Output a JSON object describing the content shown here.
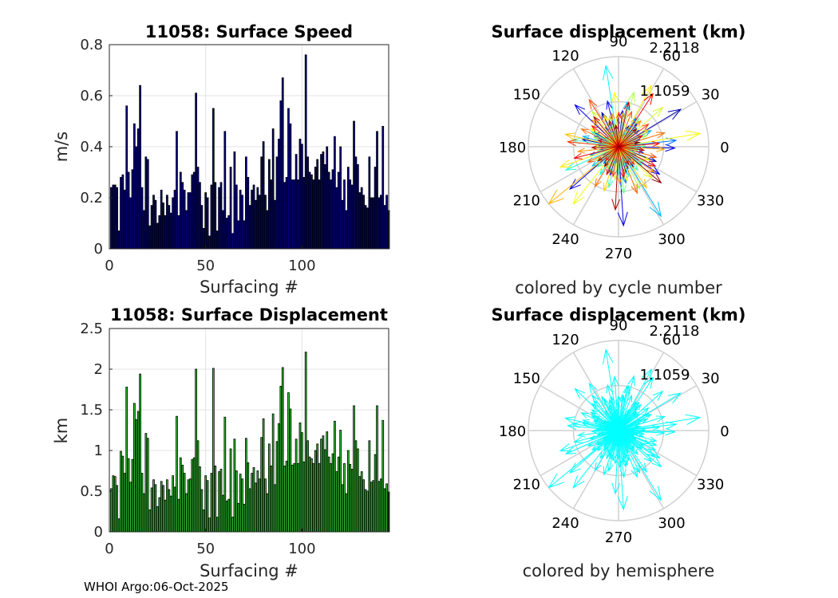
{
  "footer": "WHOI Argo:06-Oct-2025",
  "speed_chart": {
    "type": "bar",
    "title": "11058: Surface Speed",
    "xlabel": "Surfacing #",
    "ylabel": "m/s",
    "xlim": [
      0,
      145
    ],
    "ylim": [
      0,
      0.8
    ],
    "xticks": [
      0,
      50,
      100
    ],
    "yticks": [
      0,
      0.2,
      0.4,
      0.6,
      0.8
    ],
    "ytick_labels": [
      "0",
      "0.2",
      "0.4",
      "0.6",
      "0.8"
    ],
    "bar_color": "#00008b",
    "values": [
      0.24,
      0.25,
      0.25,
      0.24,
      0.07,
      0.28,
      0.29,
      0.23,
      0.56,
      0.3,
      0.2,
      0.31,
      0.49,
      0.4,
      0.47,
      0.64,
      0.24,
      0.15,
      0.36,
      0.35,
      0.09,
      0.17,
      0.21,
      0.19,
      0.1,
      0.13,
      0.23,
      0.18,
      0.13,
      0.21,
      0.17,
      0.14,
      0.2,
      0.23,
      0.46,
      0.13,
      0.3,
      0.26,
      0.23,
      0.15,
      0.22,
      0.22,
      0.29,
      0.3,
      0.61,
      0.32,
      0.26,
      0.17,
      0.08,
      0.22,
      0.2,
      0.05,
      0.25,
      0.55,
      0.26,
      0.07,
      0.24,
      0.26,
      0.15,
      0.46,
      0.12,
      0.13,
      0.32,
      0.06,
      0.38,
      0.25,
      0.11,
      0.23,
      0.21,
      0.11,
      0.36,
      0.28,
      0.17,
      0.23,
      0.25,
      0.19,
      0.24,
      0.21,
      0.36,
      0.42,
      0.21,
      0.15,
      0.35,
      0.27,
      0.47,
      0.19,
      0.36,
      0.43,
      0.58,
      0.67,
      0.26,
      0.28,
      0.55,
      0.49,
      0.27,
      0.27,
      0.37,
      0.27,
      0.43,
      0.41,
      0.28,
      0.76,
      0.36,
      0.3,
      0.29,
      0.27,
      0.32,
      0.35,
      0.27,
      0.37,
      0.38,
      0.33,
      0.4,
      0.3,
      0.27,
      0.31,
      0.44,
      0.24,
      0.3,
      0.4,
      0.19,
      0.27,
      0.15,
      0.32,
      0.27,
      0.25,
      0.5,
      0.36,
      0.33,
      0.22,
      0.24,
      0.21,
      0.17,
      0.16,
      0.36,
      0.2,
      0.2,
      0.32,
      0.46,
      0.2,
      0.21,
      0.48,
      0.17,
      0.21,
      0.15
    ]
  },
  "disp_chart": {
    "type": "bar",
    "title": "11058: Surface Displacement",
    "xlabel": "Surfacing #",
    "ylabel": "km",
    "xlim": [
      0,
      145
    ],
    "ylim": [
      0,
      2.5
    ],
    "xticks": [
      0,
      50,
      100
    ],
    "yticks": [
      0,
      0.5,
      1,
      1.5,
      2,
      2.5
    ],
    "ytick_labels": [
      "0",
      "0.5",
      "1",
      "1.5",
      "2",
      "2.5"
    ],
    "bar_color": "#33cc33",
    "values": [
      0.53,
      0.69,
      0.68,
      0.57,
      0.16,
      0.99,
      0.93,
      0.72,
      1.78,
      0.9,
      0.61,
      0.89,
      1.58,
      1.38,
      1.48,
      1.94,
      0.72,
      0.47,
      1.21,
      1.15,
      0.27,
      0.54,
      0.64,
      0.58,
      0.31,
      0.42,
      0.62,
      0.57,
      0.39,
      0.64,
      0.52,
      0.44,
      0.69,
      0.55,
      1.42,
      0.4,
      0.91,
      0.82,
      0.72,
      0.47,
      0.64,
      0.65,
      0.89,
      0.91,
      2.0,
      1.12,
      0.8,
      0.52,
      0.27,
      0.69,
      0.63,
      0.17,
      0.72,
      2.01,
      0.81,
      0.18,
      0.74,
      0.77,
      0.45,
      1.41,
      0.38,
      0.4,
      1.02,
      0.18,
      1.14,
      0.75,
      0.35,
      0.71,
      0.65,
      0.34,
      1.15,
      0.85,
      0.53,
      0.72,
      0.79,
      0.6,
      0.75,
      0.65,
      1.16,
      1.39,
      0.65,
      0.47,
      1.08,
      0.81,
      1.45,
      0.58,
      1.11,
      1.33,
      1.79,
      2.02,
      0.81,
      0.87,
      1.71,
      1.51,
      0.82,
      0.84,
      1.14,
      0.84,
      1.34,
      1.22,
      0.86,
      2.21,
      1.12,
      0.92,
      0.9,
      0.84,
      1.0,
      1.08,
      0.84,
      1.14,
      1.18,
      1.01,
      1.23,
      0.92,
      0.84,
      0.96,
      1.36,
      0.74,
      0.92,
      1.25,
      0.58,
      0.84,
      0.47,
      1.0,
      0.83,
      0.77,
      1.55,
      1.12,
      1.02,
      0.68,
      0.74,
      0.64,
      0.52,
      0.5,
      1.12,
      0.61,
      0.63,
      0.95,
      1.55,
      0.62,
      0.65,
      1.37,
      0.53,
      0.59,
      0.49
    ]
  },
  "compass_top": {
    "type": "compass",
    "title": "Surface displacement (km)",
    "caption": "colored by cycle number",
    "rmax": 2.2118,
    "ring_labels": [
      "2.2118",
      "1.1059"
    ],
    "angle_labels": [
      "90",
      "60",
      "30",
      "0",
      "330",
      "300",
      "270",
      "240",
      "210",
      "180",
      "150",
      "120"
    ],
    "colormap": "jet"
  },
  "compass_bottom": {
    "type": "compass",
    "title": "Surface displacement (km)",
    "caption": "colored by hemisphere",
    "rmax": 2.2118,
    "ring_labels": [
      "2.2118",
      "1.1059"
    ],
    "angle_labels": [
      "90",
      "60",
      "30",
      "0",
      "330",
      "300",
      "270",
      "240",
      "210",
      "180",
      "150",
      "120"
    ],
    "arrow_color": "#00ffff"
  },
  "chart_data": [
    {
      "type": "bar",
      "title": "11058: Surface Speed",
      "ylabel": "m/s",
      "xlabel": "Surfacing #",
      "ylim": [
        0,
        0.8
      ],
      "note": "values in speed_chart.values"
    },
    {
      "type": "bar",
      "title": "11058: Surface Displacement",
      "ylabel": "km",
      "xlabel": "Surfacing #",
      "ylim": [
        0,
        2.5
      ],
      "note": "values in disp_chart.values"
    },
    {
      "type": "compass",
      "title": "Surface displacement (km)",
      "caption": "colored by cycle number",
      "rmax": 2.2118
    },
    {
      "type": "compass",
      "title": "Surface displacement (km)",
      "caption": "colored by hemisphere",
      "rmax": 2.2118
    }
  ]
}
